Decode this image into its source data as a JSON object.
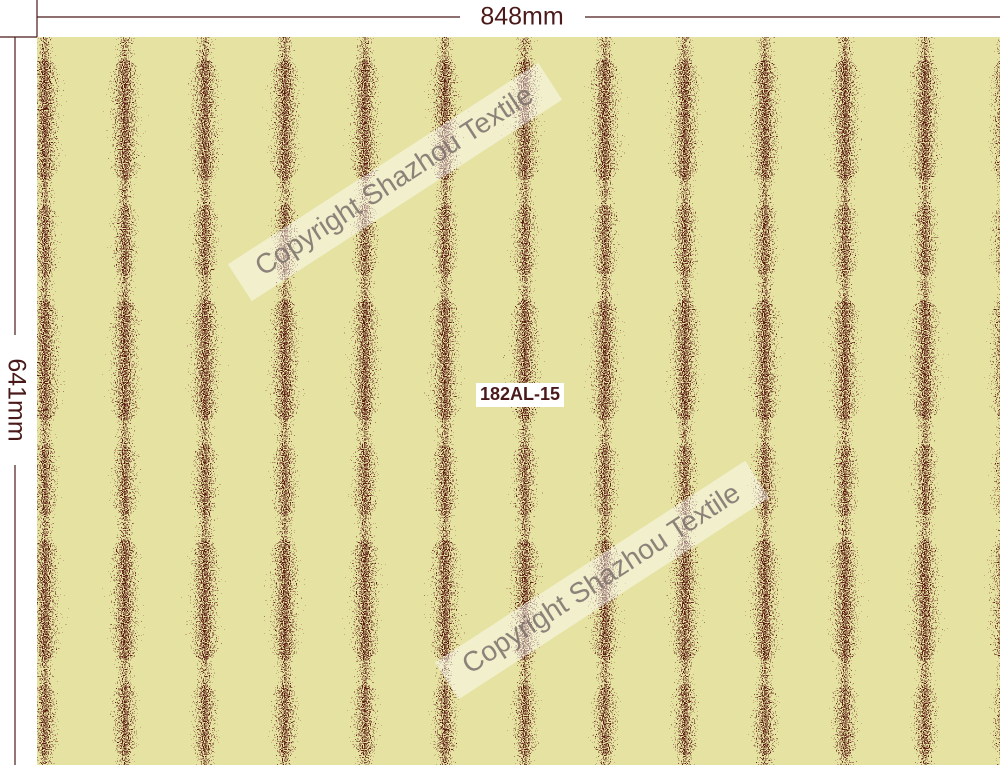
{
  "dimensions": {
    "width_label": "848mm",
    "height_label": "641mm"
  },
  "design": {
    "code": "182AL-15"
  },
  "watermarks": [
    "Copyright Shazhou Textile",
    "Copyright Shazhou Textile"
  ]
}
